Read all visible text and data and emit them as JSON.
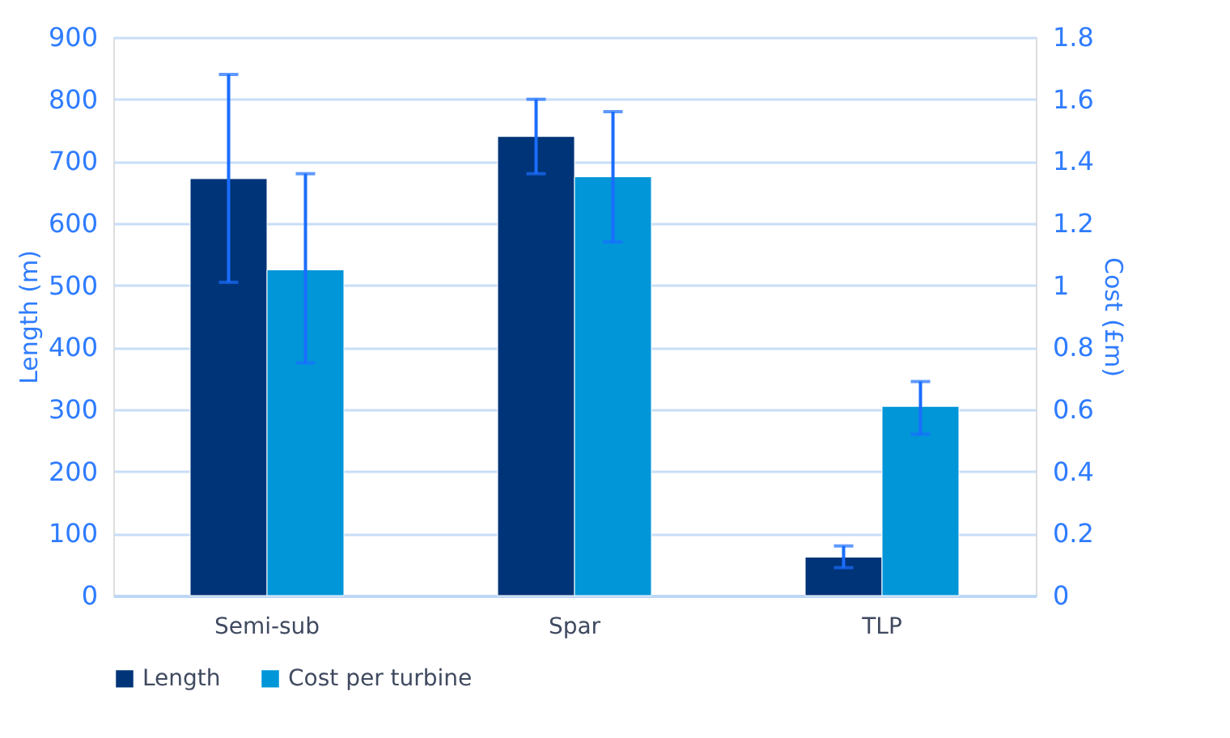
{
  "chart_data": {
    "type": "bar",
    "ylabel": "Length (m)",
    "y2label": "Cost (£m)",
    "categories": [
      "Semi-sub",
      "Spar",
      "TLP"
    ],
    "series": [
      {
        "name": "Length",
        "color": "#003478",
        "values": [
          672,
          740,
          62
        ],
        "errors": [
          [
            505,
            840
          ],
          [
            680,
            800
          ],
          [
            45,
            80
          ]
        ]
      },
      {
        "name": "Cost per turbine",
        "color": "#0096d8",
        "axis": "y2",
        "values": [
          1.05,
          1.35,
          0.61
        ],
        "errors": [
          [
            0.75,
            1.36
          ],
          [
            1.14,
            1.56
          ],
          [
            0.52,
            0.69
          ]
        ]
      }
    ],
    "ylim": [
      0,
      900
    ],
    "yticks": [
      0,
      100,
      200,
      300,
      400,
      500,
      600,
      700,
      800,
      900
    ],
    "y2lim": [
      0,
      1.8
    ],
    "y2ticks": [
      0,
      0.2,
      0.4,
      0.6,
      0.8,
      1,
      1.2,
      1.4,
      1.6,
      1.8
    ],
    "grid": "y",
    "legend": "bottom"
  }
}
